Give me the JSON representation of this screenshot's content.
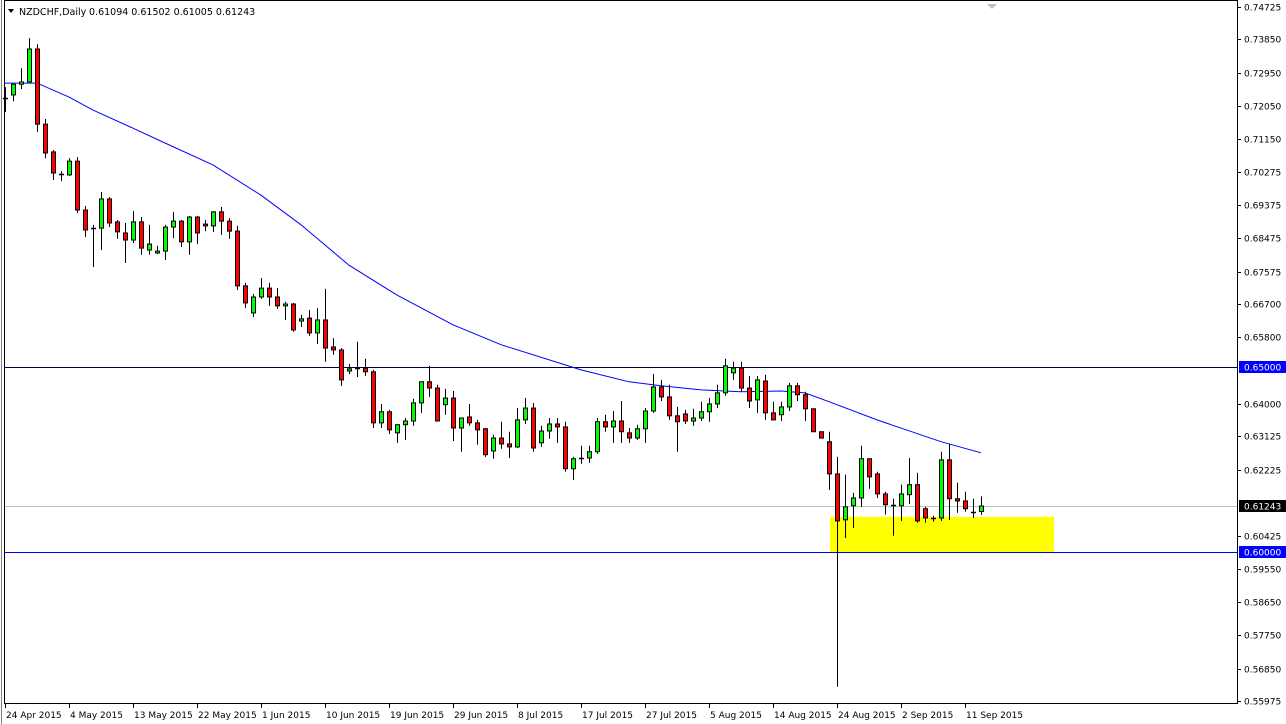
{
  "header": {
    "symbol": "NZDCHF,Daily",
    "ohlc": "0.61094 0.61502 0.61005 0.61243",
    "menu_icon": "triangle-down-icon"
  },
  "colors": {
    "bull": "#00ff00",
    "bear": "#ff0000",
    "outline": "#000000",
    "moving_average": "#0000ff",
    "level_line_blue": "#0000ff",
    "level_line_dark": "#000040",
    "bid_line": "#c0c0c0",
    "zone": "#ffff00"
  },
  "chart_data": {
    "type": "candlestick",
    "title": "NZDCHF,Daily",
    "ylim": [
      0.55975,
      0.74725
    ],
    "grid": false,
    "y_ticks": [
      "0.74725",
      "0.73850",
      "0.72950",
      "0.72050",
      "0.71150",
      "0.70275",
      "0.69375",
      "0.68475",
      "0.67575",
      "0.66700",
      "0.65800",
      "0.64000",
      "0.63125",
      "0.62225",
      "0.60425",
      "0.59550",
      "0.58650",
      "0.57750",
      "0.56850",
      "0.55975"
    ],
    "x_ticks": [
      "24 Apr 2015",
      "4 May 2015",
      "13 May 2015",
      "22 May 2015",
      "1 Jun 2015",
      "10 Jun 2015",
      "19 Jun 2015",
      "29 Jun 2015",
      "8 Jul 2015",
      "17 Jul 2015",
      "27 Jul 2015",
      "5 Aug 2015",
      "14 Aug 2015",
      "24 Aug 2015",
      "2 Sep 2015",
      "11 Sep 2015"
    ],
    "x_tick_every_bars": 8,
    "ohlc_columns": [
      "open",
      "high",
      "low",
      "close"
    ],
    "candles": [
      [
        0.7226,
        0.7256,
        0.7189,
        0.7226
      ],
      [
        0.7235,
        0.7264,
        0.7218,
        0.7264
      ],
      [
        0.7264,
        0.7307,
        0.7251,
        0.727
      ],
      [
        0.727,
        0.7388,
        0.727,
        0.7359
      ],
      [
        0.7359,
        0.7372,
        0.7135,
        0.7156
      ],
      [
        0.7156,
        0.717,
        0.7064,
        0.7078
      ],
      [
        0.7081,
        0.7086,
        0.7005,
        0.7024
      ],
      [
        0.7021,
        0.7029,
        0.7002,
        0.7021
      ],
      [
        0.7019,
        0.7064,
        0.7016,
        0.7056
      ],
      [
        0.7056,
        0.7067,
        0.6916,
        0.6924
      ],
      [
        0.6924,
        0.6935,
        0.6851,
        0.687
      ],
      [
        0.6875,
        0.6884,
        0.677,
        0.6875
      ],
      [
        0.6875,
        0.6973,
        0.6816,
        0.6954
      ],
      [
        0.6954,
        0.6959,
        0.6878,
        0.6889
      ],
      [
        0.6892,
        0.6897,
        0.6846,
        0.6865
      ],
      [
        0.6862,
        0.6889,
        0.6781,
        0.6843
      ],
      [
        0.6843,
        0.6921,
        0.6835,
        0.6892
      ],
      [
        0.6892,
        0.6905,
        0.6803,
        0.6821
      ],
      [
        0.6816,
        0.6884,
        0.6803,
        0.6832
      ],
      [
        0.6808,
        0.6827,
        0.6805,
        0.6813
      ],
      [
        0.6813,
        0.6884,
        0.6789,
        0.6878
      ],
      [
        0.6878,
        0.6919,
        0.6848,
        0.6894
      ],
      [
        0.6894,
        0.6897,
        0.6824,
        0.6838
      ],
      [
        0.6838,
        0.6908,
        0.6803,
        0.6905
      ],
      [
        0.6905,
        0.6908,
        0.6832,
        0.6862
      ],
      [
        0.6886,
        0.6897,
        0.6867,
        0.6881
      ],
      [
        0.6881,
        0.6921,
        0.6865,
        0.6919
      ],
      [
        0.6919,
        0.6932,
        0.6857,
        0.6894
      ],
      [
        0.6894,
        0.6902,
        0.6846,
        0.6867
      ],
      [
        0.6867,
        0.6881,
        0.6708,
        0.6719
      ],
      [
        0.6719,
        0.6727,
        0.6659,
        0.6673
      ],
      [
        0.6646,
        0.6697,
        0.6635,
        0.6689
      ],
      [
        0.6689,
        0.674,
        0.6684,
        0.6713
      ],
      [
        0.6713,
        0.6727,
        0.6665,
        0.6689
      ],
      [
        0.6689,
        0.6713,
        0.6657,
        0.6665
      ],
      [
        0.6665,
        0.6676,
        0.6627,
        0.667
      ],
      [
        0.667,
        0.6673,
        0.6595,
        0.66
      ],
      [
        0.6624,
        0.6641,
        0.6608,
        0.663
      ],
      [
        0.6632,
        0.6654,
        0.6584,
        0.6592
      ],
      [
        0.6592,
        0.6659,
        0.6562,
        0.6627
      ],
      [
        0.6627,
        0.6711,
        0.6514,
        0.6551
      ],
      [
        0.6554,
        0.6578,
        0.6533,
        0.6546
      ],
      [
        0.6546,
        0.6551,
        0.6449,
        0.6465
      ],
      [
        0.6489,
        0.6508,
        0.6481,
        0.6495
      ],
      [
        0.6497,
        0.6568,
        0.6473,
        0.6495
      ],
      [
        0.6497,
        0.6522,
        0.6476,
        0.6487
      ],
      [
        0.6487,
        0.6492,
        0.6335,
        0.6349
      ],
      [
        0.6349,
        0.64,
        0.6335,
        0.6379
      ],
      [
        0.6379,
        0.6384,
        0.6319,
        0.633
      ],
      [
        0.6322,
        0.6344,
        0.6295,
        0.6344
      ],
      [
        0.6344,
        0.6362,
        0.6303,
        0.6354
      ],
      [
        0.6354,
        0.6414,
        0.6341,
        0.6403
      ],
      [
        0.6403,
        0.646,
        0.6376,
        0.646
      ],
      [
        0.646,
        0.6503,
        0.6419,
        0.6443
      ],
      [
        0.6443,
        0.6452,
        0.6354,
        0.6354
      ],
      [
        0.6398,
        0.6441,
        0.6371,
        0.6416
      ],
      [
        0.6416,
        0.6435,
        0.63,
        0.6335
      ],
      [
        0.6335,
        0.6362,
        0.6271,
        0.6362
      ],
      [
        0.6365,
        0.64,
        0.6341,
        0.6349
      ],
      [
        0.6349,
        0.6357,
        0.629,
        0.633
      ],
      [
        0.6333,
        0.6335,
        0.6257,
        0.6263
      ],
      [
        0.6273,
        0.6317,
        0.6252,
        0.6308
      ],
      [
        0.6308,
        0.6352,
        0.6279,
        0.6292
      ],
      [
        0.6292,
        0.6325,
        0.6254,
        0.6284
      ],
      [
        0.6284,
        0.6389,
        0.6281,
        0.6357
      ],
      [
        0.6357,
        0.6416,
        0.6346,
        0.6389
      ],
      [
        0.6389,
        0.6403,
        0.6271,
        0.6281
      ],
      [
        0.6295,
        0.6341,
        0.6284,
        0.6327
      ],
      [
        0.6327,
        0.6362,
        0.6306,
        0.6346
      ],
      [
        0.6346,
        0.6362,
        0.6295,
        0.6338
      ],
      [
        0.6338,
        0.6352,
        0.6217,
        0.6225
      ],
      [
        0.6225,
        0.6257,
        0.6195,
        0.6252
      ],
      [
        0.6252,
        0.6287,
        0.6238,
        0.6254
      ],
      [
        0.6254,
        0.6287,
        0.6241,
        0.6271
      ],
      [
        0.6271,
        0.6362,
        0.6265,
        0.6352
      ],
      [
        0.6352,
        0.6371,
        0.6325,
        0.6338
      ],
      [
        0.6338,
        0.6381,
        0.6295,
        0.6354
      ],
      [
        0.6354,
        0.6408,
        0.6295,
        0.6325
      ],
      [
        0.6322,
        0.6335,
        0.6295,
        0.6308
      ],
      [
        0.6308,
        0.6344,
        0.6303,
        0.6333
      ],
      [
        0.6333,
        0.6389,
        0.6295,
        0.6381
      ],
      [
        0.6381,
        0.6481,
        0.6376,
        0.6446
      ],
      [
        0.6446,
        0.6465,
        0.6408,
        0.6419
      ],
      [
        0.6419,
        0.6452,
        0.6357,
        0.6368
      ],
      [
        0.6368,
        0.6392,
        0.6271,
        0.6352
      ],
      [
        0.6373,
        0.6384,
        0.6346,
        0.6354
      ],
      [
        0.6354,
        0.6387,
        0.6341,
        0.6362
      ],
      [
        0.6362,
        0.6406,
        0.6354,
        0.6379
      ],
      [
        0.6379,
        0.6416,
        0.6352,
        0.64
      ],
      [
        0.64,
        0.6452,
        0.6389,
        0.643
      ],
      [
        0.643,
        0.6522,
        0.6422,
        0.6503
      ],
      [
        0.6484,
        0.6514,
        0.6465,
        0.6497
      ],
      [
        0.6497,
        0.6514,
        0.6433,
        0.6443
      ],
      [
        0.6443,
        0.6476,
        0.6389,
        0.6408
      ],
      [
        0.6411,
        0.6476,
        0.6376,
        0.6465
      ],
      [
        0.6462,
        0.6479,
        0.6357,
        0.6376
      ],
      [
        0.6376,
        0.6406,
        0.6357,
        0.6357
      ],
      [
        0.6371,
        0.6406,
        0.6354,
        0.6392
      ],
      [
        0.6392,
        0.6457,
        0.6381,
        0.6449
      ],
      [
        0.6449,
        0.6457,
        0.6408,
        0.6425
      ],
      [
        0.6425,
        0.6433,
        0.6354,
        0.6387
      ],
      [
        0.6387,
        0.6387,
        0.6325,
        0.6325
      ],
      [
        0.6325,
        0.6325,
        0.6308,
        0.6308
      ],
      [
        0.6298,
        0.6325,
        0.6168,
        0.6211
      ],
      [
        0.6211,
        0.6257,
        0.5636,
        0.6084
      ],
      [
        0.6087,
        0.6209,
        0.6038,
        0.6122
      ],
      [
        0.6125,
        0.616,
        0.6065,
        0.6146
      ],
      [
        0.6146,
        0.6287,
        0.6122,
        0.6252
      ],
      [
        0.6252,
        0.6252,
        0.6171,
        0.6203
      ],
      [
        0.6211,
        0.6217,
        0.6146,
        0.6157
      ],
      [
        0.6157,
        0.6163,
        0.6101,
        0.6128
      ],
      [
        0.6128,
        0.6144,
        0.6044,
        0.6125
      ],
      [
        0.6125,
        0.6182,
        0.6084,
        0.6157
      ],
      [
        0.6155,
        0.6254,
        0.613,
        0.6182
      ],
      [
        0.6182,
        0.6214,
        0.6079,
        0.6084
      ],
      [
        0.6117,
        0.6122,
        0.6079,
        0.6092
      ],
      [
        0.6092,
        0.6098,
        0.6082,
        0.609
      ],
      [
        0.6092,
        0.6271,
        0.6084,
        0.6249
      ],
      [
        0.6249,
        0.6292,
        0.6087,
        0.6144
      ],
      [
        0.6144,
        0.6187,
        0.6106,
        0.6138
      ],
      [
        0.6138,
        0.6163,
        0.6109,
        0.6117
      ],
      [
        0.6109,
        0.6144,
        0.6092,
        0.6106
      ],
      [
        0.61094,
        0.61502,
        0.61005,
        0.61243
      ]
    ],
    "moving_average": {
      "points_bar_price": [
        [
          0,
          0.7267
        ],
        [
          4,
          0.7267
        ],
        [
          8,
          0.7229
        ],
        [
          11,
          0.7194
        ],
        [
          16,
          0.7145
        ],
        [
          20,
          0.7105
        ],
        [
          26,
          0.7046
        ],
        [
          32,
          0.6964
        ],
        [
          37,
          0.6884
        ],
        [
          43,
          0.6775
        ],
        [
          49,
          0.6694
        ],
        [
          56,
          0.6614
        ],
        [
          62,
          0.656
        ],
        [
          72,
          0.6492
        ],
        [
          78,
          0.646
        ],
        [
          82,
          0.6449
        ],
        [
          87,
          0.6438
        ],
        [
          92,
          0.6433
        ],
        [
          97,
          0.6435
        ],
        [
          100,
          0.643
        ],
        [
          103,
          0.6406
        ],
        [
          109,
          0.6357
        ],
        [
          117,
          0.6298
        ],
        [
          122,
          0.6268
        ]
      ]
    },
    "horizontal_lines": [
      {
        "price": 0.65,
        "label": "0.65000",
        "style": "dark"
      },
      {
        "price": 0.6,
        "label": "0.60000",
        "style": "blue"
      },
      {
        "price": 0.61243,
        "label": "0.61243",
        "style": "bid"
      }
    ],
    "highlight_zone": {
      "price_from": 0.6,
      "price_to": 0.6095,
      "bar_from": 103,
      "bar_to": 131
    }
  }
}
